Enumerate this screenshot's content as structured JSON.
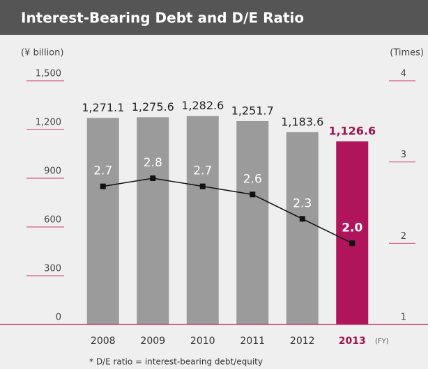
{
  "chart_data": {
    "type": "bar",
    "title": "Interest-Bearing Debt and D/E Ratio",
    "ylabel": "(¥ billion)",
    "y2label": "(Times)",
    "xlabel": "(FY)",
    "footnote": "* D/E ratio = interest-bearing debt/equity",
    "categories": [
      "2008",
      "2009",
      "2010",
      "2011",
      "2012",
      "2013"
    ],
    "series": [
      {
        "name": "Interest-Bearing Debt",
        "type": "bar",
        "colors": [
          "#9b9b9b",
          "#9b9b9b",
          "#9b9b9b",
          "#9b9b9b",
          "#9b9b9b",
          "#b0145a"
        ],
        "values": [
          1271.1,
          1275.6,
          1282.6,
          1251.7,
          1183.6,
          1126.6
        ],
        "value_labels": [
          "1,271.1",
          "1,275.6",
          "1,282.6",
          "1,251.7",
          "1,183.6",
          "1,126.6"
        ]
      },
      {
        "name": "D/E Ratio",
        "type": "line",
        "axis": "y2",
        "color": "#111111",
        "values": [
          2.7,
          2.8,
          2.7,
          2.6,
          2.3,
          2.0
        ],
        "value_labels": [
          "2.7",
          "2.8",
          "2.7",
          "2.6",
          "2.3",
          "2.0"
        ]
      }
    ],
    "highlight_color": "#a0124e",
    "ylim": [
      0,
      1500
    ],
    "yticks": [
      0,
      300,
      600,
      900,
      {
        "value": 1200,
        "label": "1,200"
      },
      {
        "value": 1500,
        "label": "1,500"
      }
    ],
    "y2lim": [
      1,
      4
    ],
    "y2ticks": [
      1,
      2,
      3,
      4
    ]
  }
}
